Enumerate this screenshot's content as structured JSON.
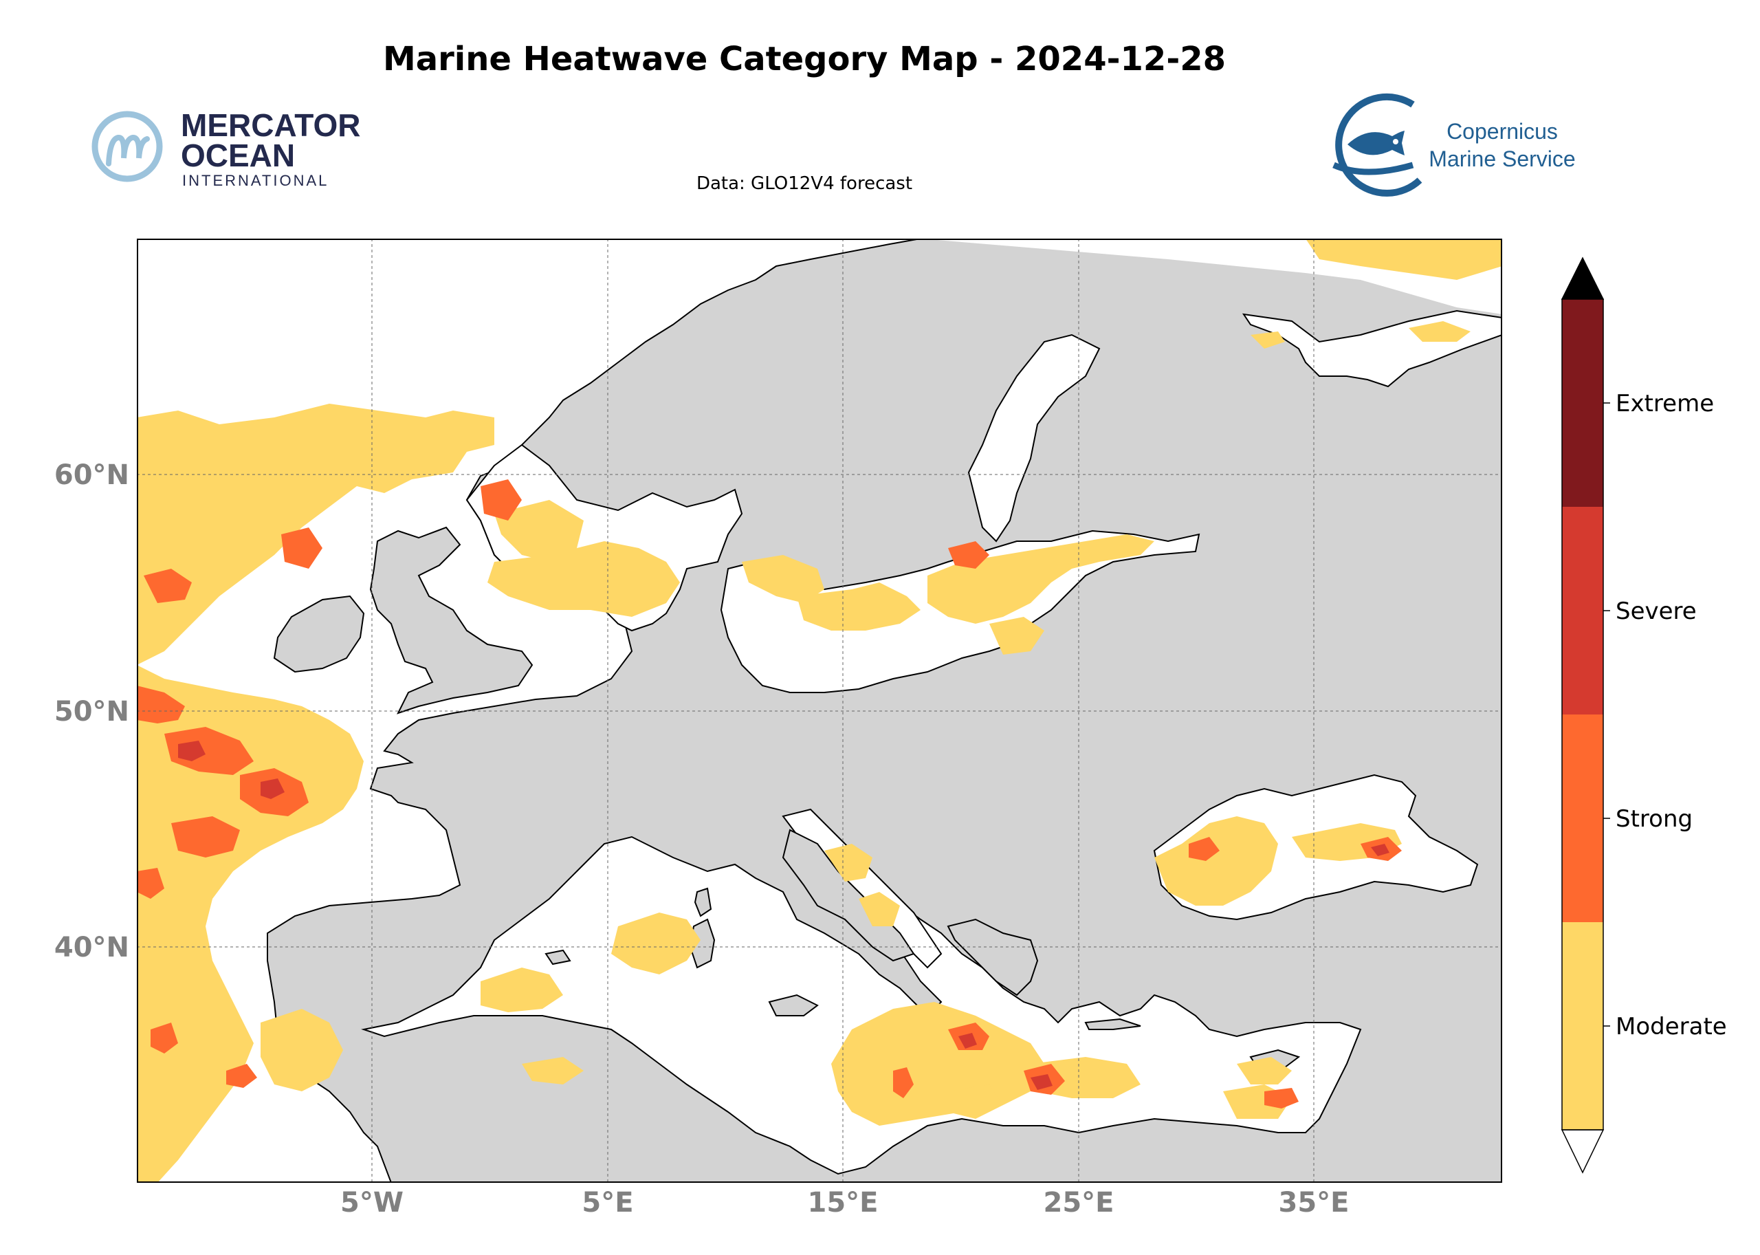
{
  "title": "Marine Heatwave Category Map - 2024-12-28",
  "subtitle": "Data: GLO12V4 forecast",
  "logos": {
    "mercator": {
      "line1": "MERCATOR",
      "line2": "OCEAN",
      "line3": "INTERNATIONAL",
      "color": "#23294d",
      "accent": "#9cc3dc"
    },
    "copernicus": {
      "line1": "Copernicus",
      "line2": "Marine Service",
      "color": "#215f92"
    }
  },
  "map": {
    "extent": {
      "lon": [
        -15,
        43
      ],
      "lat": [
        30,
        70
      ]
    },
    "lon_ticks": [
      {
        "value": -5,
        "label": "5°W"
      },
      {
        "value": 5,
        "label": "5°E"
      },
      {
        "value": 15,
        "label": "15°E"
      },
      {
        "value": 25,
        "label": "25°E"
      },
      {
        "value": 35,
        "label": "35°E"
      }
    ],
    "lat_ticks": [
      {
        "value": 40,
        "label": "40°N"
      },
      {
        "value": 50,
        "label": "50°N"
      },
      {
        "value": 60,
        "label": "60°N"
      }
    ],
    "gridlines": true,
    "land_color": "#d3d3d3",
    "ocean_color": "#ffffff"
  },
  "legend": {
    "categories": [
      {
        "name": "Moderate",
        "color": "#fed766"
      },
      {
        "name": "Strong",
        "color": "#fe692f"
      },
      {
        "name": "Severe",
        "color": "#d53a2f"
      },
      {
        "name": "Extreme",
        "color": "#80191d"
      }
    ],
    "over_color": "#000000",
    "under_color": "#ffffff"
  }
}
